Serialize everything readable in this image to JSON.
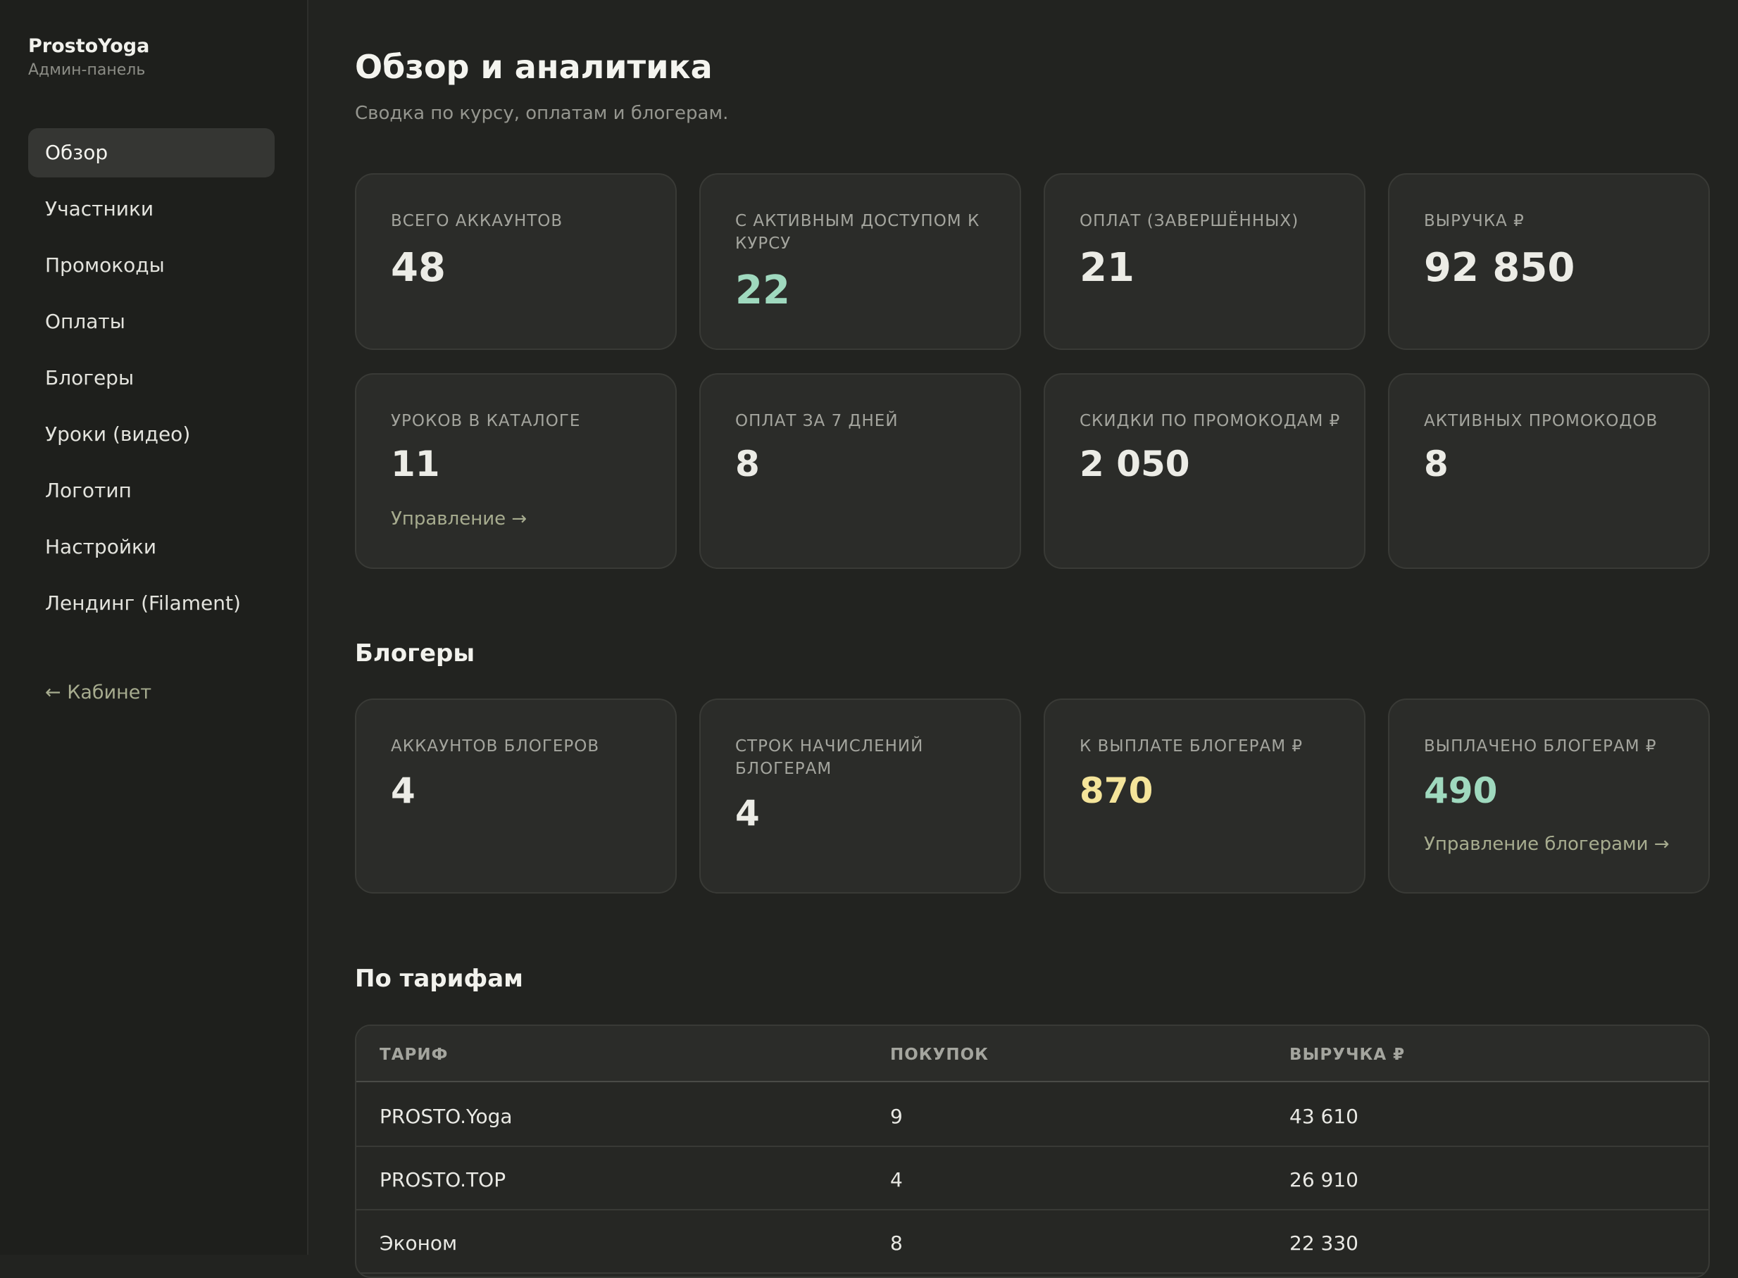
{
  "brand": {
    "name": "ProstoYoga",
    "subtitle": "Админ-панель"
  },
  "nav": {
    "items": [
      {
        "label": "Обзор",
        "active": true
      },
      {
        "label": "Участники"
      },
      {
        "label": "Промокоды"
      },
      {
        "label": "Оплаты"
      },
      {
        "label": "Блогеры"
      },
      {
        "label": "Уроки (видео)"
      },
      {
        "label": "Логотип"
      },
      {
        "label": "Настройки"
      },
      {
        "label": "Лендинг (Filament)"
      }
    ],
    "back": "← Кабинет"
  },
  "page": {
    "title": "Обзор и аналитика",
    "subtitle": "Сводка по курсу, оплатам и блогерам."
  },
  "stats": [
    {
      "label": "Всего аккаунтов",
      "value": "48"
    },
    {
      "label": "С активным доступом к курсу",
      "value": "22"
    },
    {
      "label": "Оплат (завершённых)",
      "value": "21"
    },
    {
      "label": "Выручка ₽",
      "value": "92 850"
    },
    {
      "label": "Уроков в каталоге",
      "value": "11",
      "link": "Управление →"
    },
    {
      "label": "Оплат за 7 дней",
      "value": "8"
    },
    {
      "label": "Скидки по промокодам ₽",
      "value": "2 050"
    },
    {
      "label": "Активных промокодов",
      "value": "8"
    }
  ],
  "bloggers": {
    "title": "Блогеры",
    "cards": [
      {
        "label": "Аккаунтов блогеров",
        "value": "4"
      },
      {
        "label": "Строк начислений блогерам",
        "value": "4"
      },
      {
        "label": "К выплате блогерам ₽",
        "value": "870"
      },
      {
        "label": "Выплачено блогерам ₽",
        "value": "490",
        "link": "Управление блогерами →"
      }
    ]
  },
  "tariffs": {
    "title": "По тарифам",
    "columns": [
      "ТАРИФ",
      "ПОКУПОК",
      "ВЫРУЧКА ₽"
    ],
    "rows": [
      [
        "PROSTO.Yoga",
        "9",
        "43 610"
      ],
      [
        "PROSTO.TOP",
        "4",
        "26 910"
      ],
      [
        "Эконом",
        "8",
        "22 330"
      ]
    ]
  },
  "colors": {
    "accent_green": "#9fd9be",
    "accent_yellow": "#f4e49a",
    "link": "#a7ac8f",
    "background": "#222320"
  }
}
